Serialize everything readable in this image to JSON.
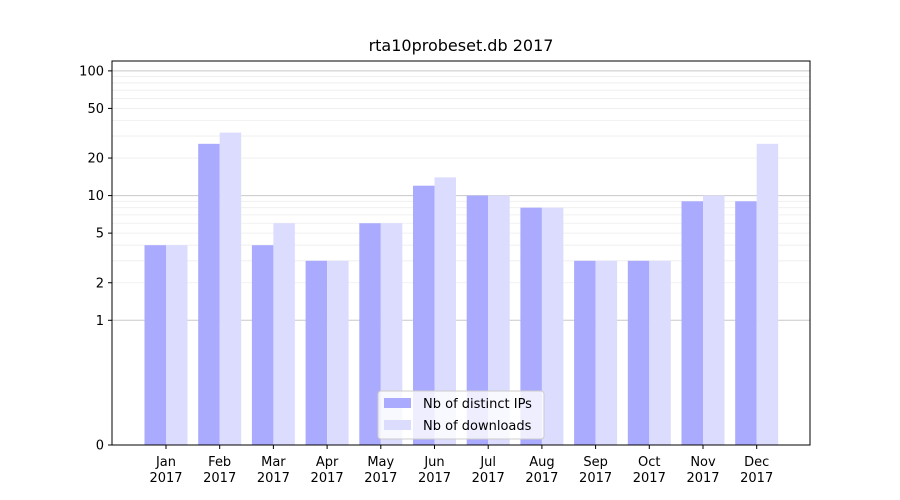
{
  "chart_data": {
    "type": "bar",
    "title": "rta10probeset.db 2017",
    "xlabel": "",
    "ylabel": "",
    "yscale": "symlog",
    "ylim": [
      0,
      120
    ],
    "yticks": [
      0,
      1,
      2,
      5,
      10,
      20,
      50,
      100
    ],
    "grid": "y-major-and-minor",
    "legend_position": "lower-center",
    "categories": [
      "Jan\n2017",
      "Feb\n2017",
      "Mar\n2017",
      "Apr\n2017",
      "May\n2017",
      "Jun\n2017",
      "Jul\n2017",
      "Aug\n2017",
      "Sep\n2017",
      "Oct\n2017",
      "Nov\n2017",
      "Dec\n2017"
    ],
    "series": [
      {
        "name": "Nb of distinct IPs",
        "color": "#aaaaff",
        "values": [
          4,
          26,
          4,
          3,
          6,
          12,
          10,
          8,
          3,
          3,
          9,
          9
        ]
      },
      {
        "name": "Nb of downloads",
        "color": "#dcdcff",
        "values": [
          4,
          32,
          6,
          3,
          6,
          14,
          10,
          8,
          3,
          3,
          10,
          26
        ]
      }
    ]
  }
}
